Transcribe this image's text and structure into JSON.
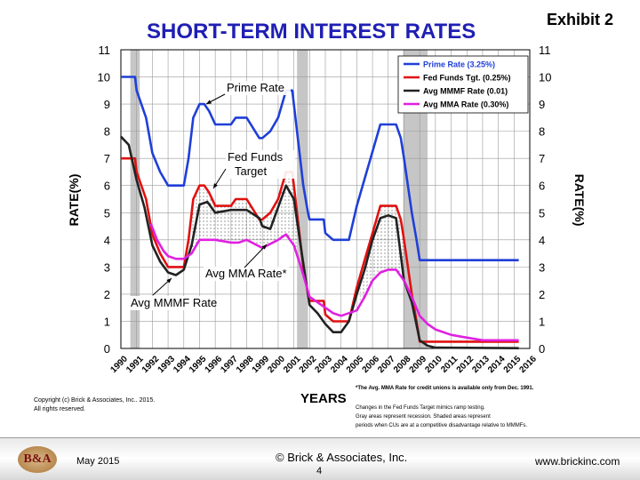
{
  "exhibit": "Exhibit 2",
  "copyright_lines": [
    "Copyright (c) Brick & Associates, Inc.. 2015.",
    "All rights reserved."
  ],
  "notes": {
    "mma_note": "*The Avg. MMA Rate for credit unions is available only  from Dec. 1991.",
    "lines": [
      "Changes in the Fed Funds Target mimics ramp testing.",
      "Gray areas represent recession.  Shaded areas represent",
      "periods when CUs are at a competitive disadvantage relative to MMMFs."
    ]
  },
  "footer": {
    "logo_text": "B&A",
    "date": "May 2015",
    "org": "© Brick & Associates, Inc.",
    "page": "4",
    "website": "www.brickinc.com"
  },
  "colors": {
    "prime": "#1f3fd8",
    "fed": "#e01010",
    "mmmf": "#222222",
    "mma": "#e020e0",
    "title": "#1f1fb4",
    "recession": "#c0c0c0"
  },
  "chart_data": {
    "type": "line",
    "title": "SHORT-TERM INTEREST RATES",
    "xlabel": "YEARS",
    "ylabel": "RATE(%)",
    "ylabel_right": "RATE(%)",
    "xlim": [
      1990,
      2016
    ],
    "ylim": [
      0,
      11
    ],
    "yticks": [
      0,
      1,
      2,
      3,
      4,
      5,
      6,
      7,
      8,
      9,
      10,
      11
    ],
    "xticks": [
      "1990",
      "1991",
      "1992",
      "1993",
      "1994",
      "1995",
      "1996",
      "1997",
      "1998",
      "1999",
      "2000",
      "2001",
      "2002",
      "2003",
      "2004",
      "2005",
      "2006",
      "2007",
      "2008",
      "2009",
      "2010",
      "2011",
      "2012",
      "2013",
      "2014",
      "2015",
      "2016"
    ],
    "recessions": [
      [
        1990.6,
        1991.2
      ],
      [
        2001.2,
        2001.9
      ],
      [
        2007.95,
        2009.5
      ]
    ],
    "legend": {
      "position": "top-right",
      "entries": [
        "Prime Rate (3.25%)",
        "Fed Funds Tgt. (0.25%)",
        "Avg MMMF Rate (0.01)",
        "Avg MMA Rate (0.30%)"
      ]
    },
    "annotations": [
      "Prime Rate",
      "Fed Funds Target",
      "Avg MMA Rate*",
      "Avg MMMF Rate"
    ],
    "series": [
      {
        "name": "Prime Rate",
        "x": [
          1990,
          1990.9,
          1991.0,
          1991.3,
          1991.6,
          1992.0,
          1992.5,
          1993.0,
          1994.0,
          1994.3,
          1994.6,
          1995.0,
          1995.3,
          1995.6,
          1996.0,
          1997.0,
          1997.3,
          1998.0,
          1998.8,
          1999.0,
          1999.5,
          2000.0,
          2000.5,
          2000.9,
          2001.0,
          2001.3,
          2001.6,
          2001.9,
          2002.0,
          2002.9,
          2003.0,
          2003.5,
          2004.5,
          2004.7,
          2005.0,
          2005.5,
          2006.0,
          2006.5,
          2007.5,
          2007.8,
          2008.0,
          2008.5,
          2008.8,
          2009.0,
          2015.3
        ],
        "values": [
          10,
          10,
          9.5,
          9,
          8.5,
          7.2,
          6.5,
          6,
          6,
          7,
          8.5,
          9,
          9,
          8.75,
          8.25,
          8.25,
          8.5,
          8.5,
          7.75,
          7.75,
          8,
          8.5,
          9.5,
          9.5,
          9,
          7.5,
          6,
          5,
          4.75,
          4.75,
          4.25,
          4,
          4,
          4.5,
          5.25,
          6.25,
          7.25,
          8.25,
          8.25,
          7.75,
          7,
          5,
          4,
          3.25,
          3.25
        ]
      },
      {
        "name": "Fed Funds Target",
        "x": [
          1990,
          1990.9,
          1991.0,
          1991.3,
          1991.6,
          1992.0,
          1992.5,
          1993.0,
          1994.0,
          1994.3,
          1994.6,
          1995.0,
          1995.3,
          1995.6,
          1996.0,
          1997.0,
          1997.3,
          1998.0,
          1998.8,
          1999.0,
          1999.5,
          2000.0,
          2000.5,
          2000.9,
          2001.0,
          2001.3,
          2001.6,
          2001.9,
          2002.0,
          2002.9,
          2003.0,
          2003.5,
          2004.5,
          2004.7,
          2005.0,
          2005.5,
          2006.0,
          2006.5,
          2007.5,
          2007.8,
          2008.0,
          2008.5,
          2008.8,
          2009.0,
          2015.3
        ],
        "values": [
          7,
          7,
          6.5,
          6,
          5.5,
          4.2,
          3.5,
          3,
          3,
          4,
          5.5,
          6,
          6,
          5.75,
          5.25,
          5.25,
          5.5,
          5.5,
          4.75,
          4.75,
          5,
          5.5,
          6.5,
          6.5,
          6,
          4.5,
          3,
          2,
          1.75,
          1.75,
          1.25,
          1,
          1,
          1.5,
          2.25,
          3.25,
          4.25,
          5.25,
          5.25,
          4.75,
          4,
          2,
          1,
          0.25,
          0.25
        ]
      },
      {
        "name": "Avg MMMF Rate",
        "x": [
          1990,
          1990.5,
          1991.0,
          1991.5,
          1992.0,
          1992.5,
          1993.0,
          1993.5,
          1994.0,
          1994.5,
          1995.0,
          1995.5,
          1996.0,
          1997.0,
          1998.0,
          1998.8,
          1999.0,
          1999.5,
          2000.0,
          2000.5,
          2001.0,
          2001.5,
          2002.0,
          2002.5,
          2003.0,
          2003.5,
          2004.0,
          2004.5,
          2005.0,
          2005.5,
          2006.0,
          2006.5,
          2007.0,
          2007.5,
          2008.0,
          2008.5,
          2009.0,
          2009.5,
          2010.0,
          2015.3
        ],
        "values": [
          7.8,
          7.5,
          6.2,
          5.2,
          3.8,
          3.2,
          2.8,
          2.7,
          2.9,
          3.8,
          5.3,
          5.4,
          5,
          5.1,
          5.1,
          4.8,
          4.5,
          4.4,
          5.2,
          6.0,
          5.5,
          3.5,
          1.6,
          1.3,
          0.9,
          0.6,
          0.6,
          1.0,
          2.0,
          2.9,
          4.0,
          4.8,
          4.9,
          4.8,
          2.5,
          1.7,
          0.3,
          0.1,
          0.03,
          0.01
        ]
      },
      {
        "name": "Avg MMA Rate",
        "x": [
          1991.9,
          1992.3,
          1992.7,
          1993.0,
          1993.5,
          1994.0,
          1994.5,
          1995.0,
          1996.0,
          1997.0,
          1997.5,
          1998.0,
          1999.0,
          2000.0,
          2000.5,
          2001.0,
          2001.5,
          2002.0,
          2002.5,
          2003.0,
          2003.5,
          2004.0,
          2005.0,
          2005.5,
          2006.0,
          2006.5,
          2007.0,
          2007.5,
          2008.0,
          2008.5,
          2009.0,
          2009.5,
          2010.0,
          2011.0,
          2012.0,
          2013.0,
          2014.0,
          2015.3
        ],
        "values": [
          4.6,
          4.0,
          3.6,
          3.4,
          3.3,
          3.3,
          3.5,
          4.0,
          4.0,
          3.9,
          3.9,
          4.0,
          3.7,
          4.0,
          4.2,
          3.8,
          2.9,
          1.9,
          1.7,
          1.5,
          1.3,
          1.2,
          1.4,
          1.9,
          2.5,
          2.8,
          2.9,
          2.9,
          2.5,
          1.9,
          1.2,
          0.9,
          0.7,
          0.5,
          0.4,
          0.3,
          0.3,
          0.3
        ]
      }
    ]
  }
}
